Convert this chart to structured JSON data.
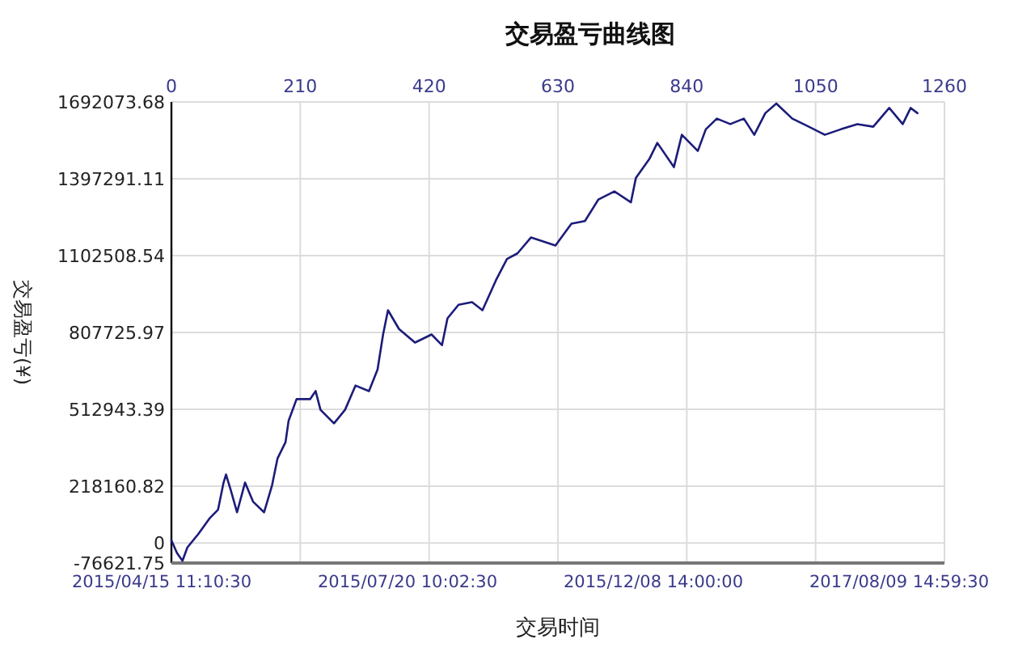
{
  "chart_data": {
    "type": "line",
    "title": "交易盈亏曲线图",
    "xlabel": "交易时间",
    "ylabel": "交易盈亏(¥)",
    "xlim": [
      0,
      1260
    ],
    "xticks": [
      0,
      210,
      420,
      630,
      840,
      1050,
      1260
    ],
    "annotations": [
      "2015/04/15 11:10:30",
      "2015/07/20 10:02:30",
      "2015/12/08 14:00:00",
      "2017/08/09 14:59:30"
    ],
    "ylim": [
      -76621.75,
      1692073.68
    ],
    "yticks": [
      -76621.75,
      0,
      218160.82,
      512943.39,
      807725.97,
      1102508.54,
      1397291.11,
      1692073.68
    ],
    "grid": true,
    "series": [
      {
        "color": "#1c1c7a",
        "x": [
          0,
          9,
          18,
          26,
          44,
          63,
          76,
          85,
          89,
          97,
          107,
          120,
          133,
          151,
          164,
          173,
          186,
          191,
          204,
          226,
          235,
          243,
          265,
          283,
          300,
          322,
          336,
          345,
          353,
          371,
          397,
          424,
          441,
          450,
          468,
          490,
          507,
          529,
          547,
          564,
          586,
          626,
          652,
          674,
          696,
          722,
          749,
          757,
          779,
          792,
          819,
          832,
          858,
          871,
          889,
          911,
          933,
          950,
          968,
          986,
          1012,
          1039,
          1065,
          1091,
          1118,
          1144,
          1170,
          1192,
          1205,
          1216
        ],
        "values": [
          10000,
          -38000,
          -68000,
          -17000,
          35000,
          97000,
          128000,
          232000,
          263000,
          201000,
          118000,
          232000,
          159000,
          118000,
          221000,
          325000,
          387000,
          469000,
          552000,
          552000,
          583000,
          511000,
          459000,
          511000,
          604000,
          583000,
          666000,
          800000,
          893000,
          821000,
          769000,
          800000,
          759000,
          862000,
          914000,
          924000,
          893000,
          1008000,
          1090000,
          1111000,
          1172000,
          1141000,
          1225000,
          1235000,
          1318000,
          1349000,
          1307000,
          1400000,
          1473000,
          1535000,
          1442000,
          1566000,
          1504000,
          1587000,
          1628000,
          1607000,
          1628000,
          1566000,
          1649000,
          1686000,
          1628000,
          1597000,
          1566000,
          1587000,
          1607000,
          1597000,
          1669000,
          1607000,
          1669000,
          1649000
        ]
      }
    ]
  }
}
